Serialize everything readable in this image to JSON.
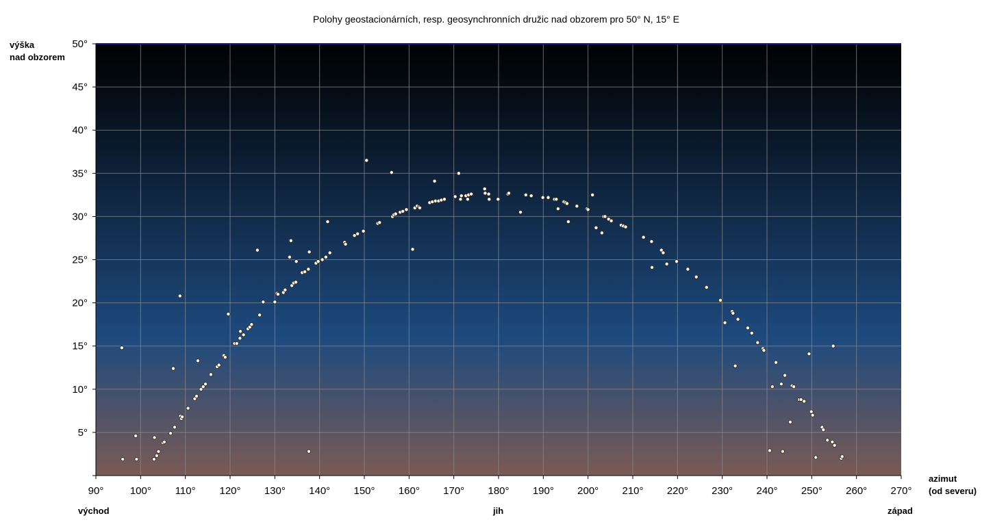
{
  "chart_data": {
    "type": "scatter",
    "title": "Polohy geostacionárních, resp. geosynchronních družic nad obzorem pro 50° N, 15° E",
    "ylabel_lines": [
      "výška",
      "nad obzorem"
    ],
    "xlabel_lines": [
      "azimut",
      "(od severu)"
    ],
    "direction_labels": {
      "east": "východ",
      "south": "jih",
      "west": "západ"
    },
    "xlim": [
      90,
      270
    ],
    "ylim": [
      0,
      50
    ],
    "xticks": [
      90,
      100,
      110,
      120,
      130,
      140,
      150,
      160,
      170,
      180,
      190,
      200,
      210,
      220,
      230,
      240,
      250,
      260,
      270
    ],
    "yticks": [
      5,
      10,
      15,
      20,
      25,
      30,
      35,
      40,
      45,
      50
    ],
    "xtick_labels": [
      "90°",
      "100°",
      "110°",
      "120°",
      "130°",
      "140°",
      "150°",
      "160°",
      "170°",
      "180°",
      "190°",
      "200°",
      "210°",
      "220°",
      "230°",
      "240°",
      "250°",
      "260°",
      "270°"
    ],
    "ytick_labels": [
      "5°",
      "10°",
      "15°",
      "20°",
      "25°",
      "30°",
      "35°",
      "40°",
      "45°",
      "50°"
    ],
    "grid": true,
    "colors": {
      "sky_top": "#000000",
      "sky_middle": "#1d4a7e",
      "sky_bottom": "#7a5a55",
      "point": "#fff4e0",
      "point_edge": "#2a2a2a",
      "grid": "#8a8a8a"
    },
    "points": [
      [
        95.8,
        14.8
      ],
      [
        96.0,
        1.9
      ],
      [
        98.9,
        4.6
      ],
      [
        99.1,
        1.9
      ],
      [
        103.0,
        1.9
      ],
      [
        103.1,
        4.4
      ],
      [
        103.6,
        2.3
      ],
      [
        104.0,
        2.8
      ],
      [
        105.0,
        3.8
      ],
      [
        105.3,
        3.9
      ],
      [
        106.7,
        4.9
      ],
      [
        107.3,
        12.4
      ],
      [
        107.6,
        5.6
      ],
      [
        108.8,
        20.8
      ],
      [
        108.9,
        6.9
      ],
      [
        109.1,
        6.6
      ],
      [
        109.3,
        6.8
      ],
      [
        110.6,
        7.8
      ],
      [
        112.1,
        8.9
      ],
      [
        112.5,
        9.2
      ],
      [
        112.8,
        13.3
      ],
      [
        113.5,
        10.0
      ],
      [
        114.0,
        10.3
      ],
      [
        114.5,
        10.6
      ],
      [
        115.7,
        11.7
      ],
      [
        117.1,
        12.6
      ],
      [
        117.5,
        12.8
      ],
      [
        118.6,
        13.9
      ],
      [
        118.9,
        13.7
      ],
      [
        119.6,
        18.7
      ],
      [
        121.0,
        15.3
      ],
      [
        121.5,
        15.3
      ],
      [
        122.2,
        15.9
      ],
      [
        122.3,
        16.7
      ],
      [
        123.0,
        16.3
      ],
      [
        124.0,
        17.0
      ],
      [
        124.4,
        17.2
      ],
      [
        124.8,
        17.5
      ],
      [
        126.1,
        26.1
      ],
      [
        126.6,
        18.6
      ],
      [
        127.4,
        20.1
      ],
      [
        130.0,
        20.1
      ],
      [
        130.5,
        21.1
      ],
      [
        130.7,
        21.0
      ],
      [
        131.9,
        21.2
      ],
      [
        132.3,
        21.5
      ],
      [
        133.3,
        25.3
      ],
      [
        133.6,
        27.2
      ],
      [
        133.8,
        22.0
      ],
      [
        134.2,
        22.3
      ],
      [
        134.7,
        22.4
      ],
      [
        134.8,
        24.8
      ],
      [
        136.1,
        23.5
      ],
      [
        136.7,
        23.6
      ],
      [
        137.5,
        23.9
      ],
      [
        137.6,
        2.8
      ],
      [
        137.7,
        25.9
      ],
      [
        139.2,
        24.6
      ],
      [
        139.7,
        24.8
      ],
      [
        140.6,
        25.0
      ],
      [
        141.4,
        25.3
      ],
      [
        141.8,
        29.4
      ],
      [
        142.3,
        25.8
      ],
      [
        145.6,
        27.0
      ],
      [
        145.8,
        26.8
      ],
      [
        147.8,
        27.8
      ],
      [
        148.5,
        28.0
      ],
      [
        149.8,
        28.3
      ],
      [
        150.5,
        36.5
      ],
      [
        153.0,
        29.2
      ],
      [
        153.4,
        29.3
      ],
      [
        156.1,
        35.1
      ],
      [
        156.3,
        30.0
      ],
      [
        156.6,
        30.2
      ],
      [
        157.0,
        30.3
      ],
      [
        158.0,
        30.5
      ],
      [
        158.6,
        30.6
      ],
      [
        159.4,
        30.8
      ],
      [
        160.8,
        26.2
      ],
      [
        161.3,
        31.0
      ],
      [
        161.8,
        31.2
      ],
      [
        162.2,
        31.1
      ],
      [
        162.4,
        31.0
      ],
      [
        164.6,
        31.6
      ],
      [
        165.2,
        31.7
      ],
      [
        165.7,
        34.1
      ],
      [
        165.9,
        31.8
      ],
      [
        166.6,
        31.8
      ],
      [
        167.2,
        31.9
      ],
      [
        167.9,
        32.0
      ],
      [
        170.3,
        32.3
      ],
      [
        171.1,
        35.0
      ],
      [
        171.5,
        32.0
      ],
      [
        171.7,
        32.4
      ],
      [
        172.7,
        32.4
      ],
      [
        173.1,
        32.0
      ],
      [
        173.3,
        32.5
      ],
      [
        173.9,
        32.6
      ],
      [
        176.9,
        33.2
      ],
      [
        177.0,
        32.7
      ],
      [
        177.8,
        32.6
      ],
      [
        177.9,
        32.0
      ],
      [
        179.9,
        32.0
      ],
      [
        182.1,
        32.6
      ],
      [
        182.3,
        32.7
      ],
      [
        184.9,
        30.5
      ],
      [
        186.1,
        32.5
      ],
      [
        187.3,
        32.4
      ],
      [
        189.9,
        32.2
      ],
      [
        191.1,
        32.2
      ],
      [
        192.5,
        32.0
      ],
      [
        192.9,
        32.0
      ],
      [
        193.3,
        30.9
      ],
      [
        194.6,
        31.7
      ],
      [
        195.0,
        31.6
      ],
      [
        195.3,
        31.5
      ],
      [
        195.6,
        29.4
      ],
      [
        197.5,
        31.2
      ],
      [
        199.8,
        30.9
      ],
      [
        200.0,
        30.8
      ],
      [
        201.0,
        32.5
      ],
      [
        201.8,
        28.7
      ],
      [
        203.1,
        28.1
      ],
      [
        203.5,
        30.0
      ],
      [
        203.8,
        30.0
      ],
      [
        204.6,
        29.7
      ],
      [
        205.2,
        29.5
      ],
      [
        207.4,
        29.0
      ],
      [
        207.9,
        28.9
      ],
      [
        208.4,
        28.8
      ],
      [
        212.4,
        27.6
      ],
      [
        214.3,
        24.1
      ],
      [
        214.2,
        27.1
      ],
      [
        216.4,
        26.1
      ],
      [
        216.8,
        25.8
      ],
      [
        217.6,
        24.5
      ],
      [
        219.8,
        24.8
      ],
      [
        222.3,
        23.9
      ],
      [
        224.2,
        23.0
      ],
      [
        226.5,
        21.8
      ],
      [
        229.6,
        20.3
      ],
      [
        230.6,
        17.7
      ],
      [
        232.2,
        19.0
      ],
      [
        232.4,
        18.8
      ],
      [
        232.9,
        12.7
      ],
      [
        233.5,
        18.1
      ],
      [
        235.7,
        17.1
      ],
      [
        236.6,
        16.5
      ],
      [
        237.9,
        15.4
      ],
      [
        239.1,
        14.7
      ],
      [
        239.3,
        14.5
      ],
      [
        240.6,
        2.9
      ],
      [
        241.2,
        10.3
      ],
      [
        242.0,
        13.1
      ],
      [
        243.2,
        10.6
      ],
      [
        243.5,
        2.8
      ],
      [
        244.0,
        11.6
      ],
      [
        245.2,
        6.2
      ],
      [
        245.6,
        10.4
      ],
      [
        246.0,
        10.3
      ],
      [
        247.2,
        8.8
      ],
      [
        247.6,
        8.8
      ],
      [
        248.3,
        8.6
      ],
      [
        249.4,
        14.1
      ],
      [
        249.9,
        7.4
      ],
      [
        250.2,
        7.0
      ],
      [
        250.9,
        2.1
      ],
      [
        252.3,
        5.6
      ],
      [
        252.6,
        5.3
      ],
      [
        253.5,
        4.1
      ],
      [
        254.6,
        3.9
      ],
      [
        254.8,
        15.0
      ],
      [
        255.1,
        3.5
      ],
      [
        256.6,
        2.0
      ],
      [
        256.8,
        2.2
      ]
    ]
  }
}
